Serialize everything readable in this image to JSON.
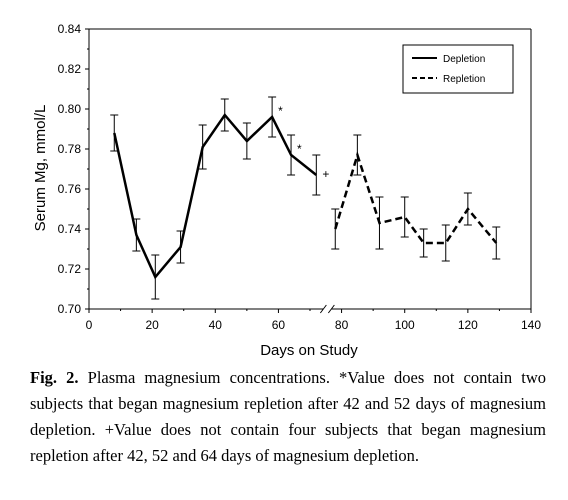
{
  "chart_data": {
    "type": "line",
    "xlabel": "Days on Study",
    "ylabel": "Serum Mg, mmol/L",
    "xlim": [
      0,
      140
    ],
    "ylim": [
      0.7,
      0.84
    ],
    "x_ticks": [
      "0",
      "20",
      "40",
      "60",
      "80",
      "100",
      "120",
      "140"
    ],
    "y_ticks": [
      "0.70",
      "0.72",
      "0.74",
      "0.76",
      "0.78",
      "0.80",
      "0.82",
      "0.84"
    ],
    "x_tick_values": [
      0,
      20,
      40,
      60,
      80,
      100,
      120,
      140
    ],
    "y_tick_values": [
      0.7,
      0.72,
      0.74,
      0.76,
      0.78,
      0.8,
      0.82,
      0.84
    ],
    "axis_break": true,
    "legend_position": "top-right",
    "grid": false,
    "series": [
      {
        "name": "Depletion",
        "style": "solid",
        "x": [
          8,
          15,
          21,
          29,
          36,
          43,
          50,
          58,
          64,
          72
        ],
        "y": [
          0.788,
          0.737,
          0.716,
          0.731,
          0.781,
          0.797,
          0.784,
          0.796,
          0.777,
          0.767
        ],
        "err": [
          0.009,
          0.008,
          0.011,
          0.008,
          0.011,
          0.008,
          0.009,
          0.01,
          0.01,
          0.01
        ]
      },
      {
        "name": "Repletion",
        "style": "dashed",
        "x": [
          78,
          85,
          92,
          100,
          106,
          113,
          120,
          129
        ],
        "y": [
          0.74,
          0.777,
          0.743,
          0.746,
          0.733,
          0.733,
          0.75,
          0.733
        ],
        "err": [
          0.01,
          0.01,
          0.013,
          0.01,
          0.007,
          0.009,
          0.008,
          0.008
        ]
      }
    ],
    "annotations": [
      {
        "text": "*",
        "x": 58,
        "y": 0.796
      },
      {
        "text": "*",
        "x": 64,
        "y": 0.777
      },
      {
        "text": "+",
        "x": 72,
        "y": 0.767
      }
    ]
  },
  "caption": {
    "label": "Fig. 2.",
    "text": " Plasma magnesium concentrations. *Value does not contain two subjects that began magnesium repletion after 42 and 52 days of magnesium depletion. +Value does not contain four subjects that began magnesium repletion after 42, 52 and 64 days of magnesium depletion."
  },
  "colors": {
    "line": "#000000",
    "background": "#ffffff"
  }
}
